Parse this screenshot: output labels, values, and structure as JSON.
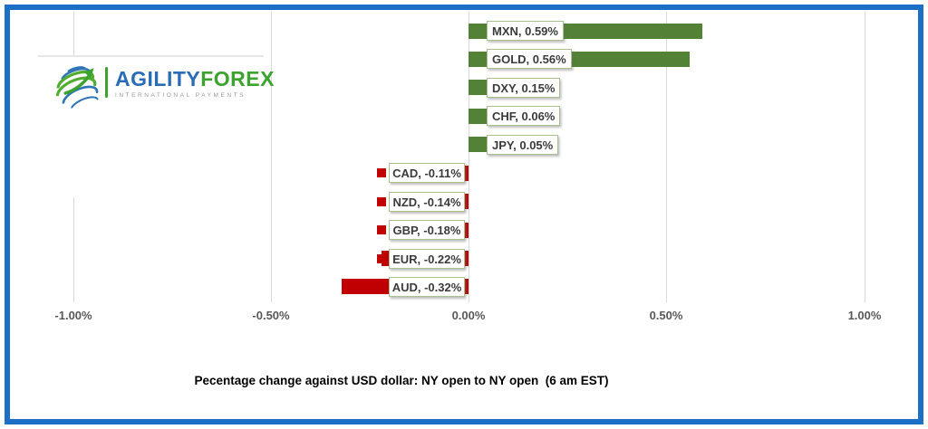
{
  "frame": {
    "border_color": "#1B6FC4"
  },
  "logo": {
    "name_part1": "AGILITY",
    "name_part2": "FOREX",
    "subtitle": "INTERNATIONAL PAYMENTS",
    "globe_icon": "globe-swirl-arrow-icon",
    "blue": "#2A6DB5",
    "green": "#3DA32F"
  },
  "chart_data": {
    "type": "bar",
    "orientation": "horizontal",
    "title": "Pecentage change against USD dollar: NY open to NY open  (6 am EST)",
    "categories": [
      "MXN",
      "GOLD",
      "DXY",
      "CHF",
      "JPY",
      "CAD",
      "NZD",
      "GBP",
      "EUR",
      "AUD"
    ],
    "values": [
      0.59,
      0.56,
      0.15,
      0.06,
      0.05,
      -0.11,
      -0.14,
      -0.18,
      -0.22,
      -0.32
    ],
    "data_labels": [
      "MXN, 0.59%",
      "GOLD, 0.56%",
      "DXY, 0.15%",
      "CHF, 0.06%",
      "JPY, 0.05%",
      "CAD, -0.11%",
      "NZD, -0.14%",
      "GBP, -0.18%",
      "EUR, -0.22%",
      "AUD, -0.32%"
    ],
    "x_ticks": [
      "-1.00%",
      "-0.50%",
      "0.00%",
      "0.50%",
      "1.00%"
    ],
    "x_tick_values": [
      -1,
      -0.5,
      0,
      0.5,
      1
    ],
    "xlim": [
      -1,
      1
    ],
    "grid": true,
    "legend": "none",
    "positive_color": "#538135",
    "negative_color": "#C00000",
    "label_box_border_color": "#A9C08F",
    "gridline_color": "#D9D9D9",
    "tick_label_color": "#595959"
  }
}
